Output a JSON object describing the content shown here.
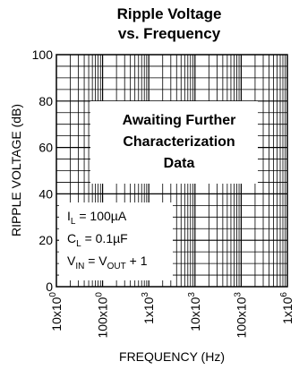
{
  "chart_data": {
    "type": "line",
    "title": "Ripple Voltage",
    "subtitle": "vs. Frequency",
    "xlabel": "FREQUENCY (Hz)",
    "ylabel": "RIPPLE VOLTAGE (dB)",
    "x_scale": "log",
    "xlim": [
      10,
      1000000
    ],
    "ylim": [
      0,
      100
    ],
    "grid": true,
    "yticks": [
      "0",
      "20",
      "40",
      "60",
      "80",
      "100"
    ],
    "xticks": [
      {
        "base": "10x10",
        "exp": "0"
      },
      {
        "base": "100x10",
        "exp": "0"
      },
      {
        "base": "1x10",
        "exp": "3"
      },
      {
        "base": "10x10",
        "exp": "3"
      },
      {
        "base": "100x10",
        "exp": "3"
      },
      {
        "base": "1x10",
        "exp": "6"
      }
    ],
    "series": [],
    "annotation": {
      "lines": [
        "Awaiting Further",
        "Characterization",
        "Data"
      ]
    },
    "conditions": {
      "il": {
        "sym": "I",
        "sub": "L",
        "rest": " = 100µA"
      },
      "cl": {
        "sym": "C",
        "sub": "L",
        "rest": " = 0.1µF"
      },
      "vin": {
        "sym": "V",
        "sub": "IN",
        "mid": " = V",
        "sub2": "OUT",
        "rest": " + 1"
      }
    }
  }
}
